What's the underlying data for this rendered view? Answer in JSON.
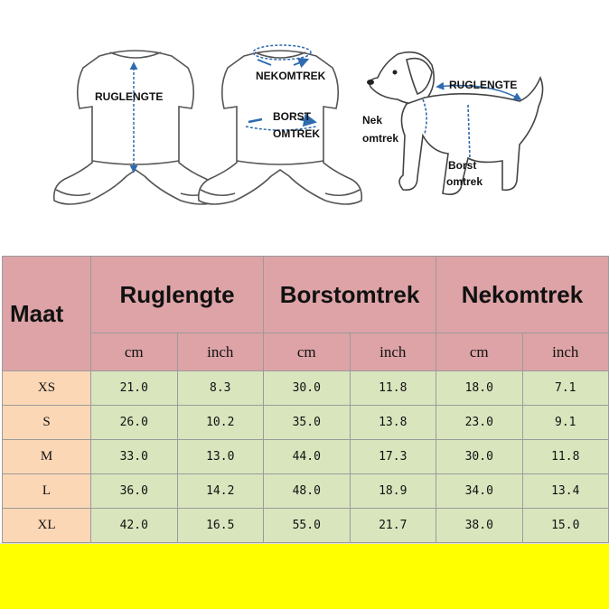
{
  "illustrations": {
    "shirt_back": {
      "label": "RUGLENGTE"
    },
    "shirt_front": {
      "neck_label": "NEKOMTREK",
      "chest_label": [
        "BORST",
        "OMTREK"
      ]
    },
    "dog": {
      "back_label": "RUGLENGTE",
      "neck_label": [
        "Nek",
        "omtrek"
      ],
      "chest_label": [
        "Borst",
        "omtrek"
      ]
    }
  },
  "table": {
    "size_header": "Maat",
    "groups": [
      "Ruglengte",
      "Borstomtrek",
      "Nekomtrek"
    ],
    "units": [
      "cm",
      "inch",
      "cm",
      "inch",
      "cm",
      "inch"
    ],
    "rows": [
      [
        "XS",
        "21.0",
        "8.3",
        "30.0",
        "11.8",
        "18.0",
        "7.1"
      ],
      [
        "S",
        "26.0",
        "10.2",
        "35.0",
        "13.8",
        "23.0",
        "9.1"
      ],
      [
        "M",
        "33.0",
        "13.0",
        "44.0",
        "17.3",
        "30.0",
        "11.8"
      ],
      [
        "L",
        "36.0",
        "14.2",
        "48.0",
        "18.9",
        "34.0",
        "13.4"
      ],
      [
        "XL",
        "42.0",
        "16.5",
        "55.0",
        "21.7",
        "38.0",
        "15.0"
      ]
    ]
  }
}
